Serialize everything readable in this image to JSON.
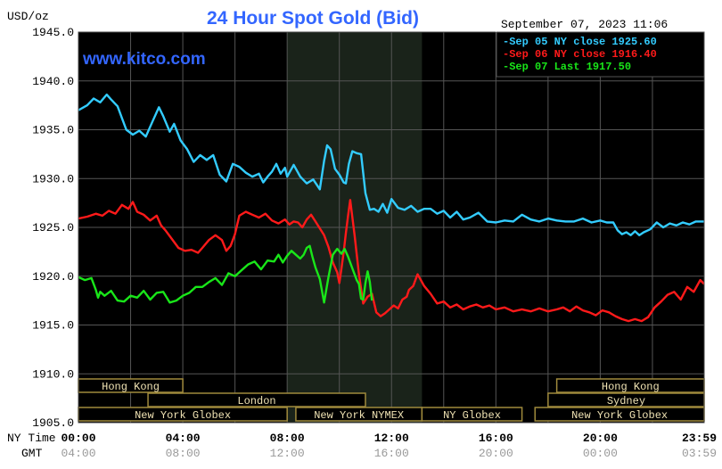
{
  "header": {
    "title": "24 Hour Spot Gold (Bid)",
    "datetime": "September 07, 2023 11:06",
    "watermark": "www.kitco.com"
  },
  "chart_data": {
    "type": "line",
    "title": "24 Hour Spot Gold (Bid)",
    "ylabel": "USD/oz",
    "xlabel": "NY Time",
    "xlabel2": "GMT",
    "ylim": [
      1905,
      1945
    ],
    "yticks": [
      "1945.0",
      "1940.0",
      "1935.0",
      "1930.0",
      "1925.0",
      "1920.0",
      "1915.0",
      "1910.0",
      "1905.0"
    ],
    "ytick_values": [
      1945,
      1940,
      1935,
      1930,
      1925,
      1920,
      1915,
      1910,
      1905
    ],
    "xlim": [
      0,
      1439
    ],
    "xticks_ny": [
      "00:00",
      "04:00",
      "08:00",
      "12:00",
      "16:00",
      "20:00",
      "23:59"
    ],
    "xticks_gmt": [
      "04:00",
      "08:00",
      "12:00",
      "16:00",
      "20:00",
      "00:00",
      "03:59"
    ],
    "xtick_minutes": [
      0,
      240,
      480,
      720,
      960,
      1200,
      1439
    ],
    "grid": true,
    "legend_position": "top-right",
    "colors": {
      "background": "#000000",
      "grid": "#555555",
      "highlight": "#1a231a",
      "title": "#3366ff",
      "watermark": "#3366ff",
      "axis_text": "#000000",
      "session_fill": "#efe2b3",
      "session_border": "#a08a3c"
    },
    "series": [
      {
        "name": "Sep 05 NY close 1925.60",
        "color": "#33ccff",
        "x": [
          0,
          20,
          35,
          50,
          65,
          75,
          90,
          100,
          110,
          125,
          140,
          155,
          170,
          185,
          195,
          210,
          220,
          235,
          250,
          265,
          280,
          295,
          310,
          325,
          340,
          355,
          370,
          385,
          400,
          415,
          425,
          435,
          445,
          455,
          465,
          475,
          480,
          495,
          510,
          525,
          540,
          555,
          565,
          572,
          580,
          590,
          600,
          610,
          615,
          622,
          630,
          640,
          650,
          660,
          670,
          680,
          690,
          700,
          710,
          720,
          735,
          750,
          765,
          780,
          795,
          810,
          825,
          840,
          855,
          870,
          885,
          900,
          920,
          940,
          960,
          980,
          1000,
          1020,
          1040,
          1060,
          1080,
          1100,
          1120,
          1140,
          1160,
          1180,
          1200,
          1215,
          1230,
          1240,
          1250,
          1260,
          1270,
          1280,
          1290,
          1300,
          1315,
          1330,
          1345,
          1360,
          1375,
          1390,
          1405,
          1420,
          1439
        ],
        "y": [
          1937.0,
          1937.5,
          1938.2,
          1937.8,
          1938.6,
          1938.1,
          1937.4,
          1936.2,
          1935.0,
          1934.5,
          1934.9,
          1934.3,
          1935.8,
          1937.3,
          1936.4,
          1934.8,
          1935.6,
          1933.9,
          1933.0,
          1931.7,
          1932.4,
          1931.9,
          1932.4,
          1930.4,
          1929.7,
          1931.5,
          1931.2,
          1930.6,
          1930.2,
          1930.5,
          1929.6,
          1930.2,
          1930.7,
          1931.5,
          1930.5,
          1931.1,
          1930.2,
          1931.4,
          1930.2,
          1929.5,
          1929.9,
          1928.9,
          1931.8,
          1933.4,
          1933.0,
          1931.0,
          1930.4,
          1929.6,
          1929.5,
          1931.5,
          1932.8,
          1932.6,
          1932.5,
          1928.5,
          1926.8,
          1926.9,
          1926.6,
          1927.4,
          1926.5,
          1927.9,
          1927.0,
          1926.8,
          1927.2,
          1926.6,
          1926.9,
          1926.9,
          1926.4,
          1926.7,
          1926.0,
          1926.6,
          1925.8,
          1926.0,
          1926.5,
          1925.6,
          1925.5,
          1925.7,
          1925.6,
          1926.3,
          1925.8,
          1925.6,
          1925.9,
          1925.7,
          1925.6,
          1925.6,
          1925.9,
          1925.5,
          1925.7,
          1925.5,
          1925.5,
          1924.7,
          1924.3,
          1924.5,
          1924.2,
          1924.6,
          1924.2,
          1924.5,
          1924.8,
          1925.5,
          1925.0,
          1925.4,
          1925.2,
          1925.5,
          1925.3,
          1925.6,
          1925.6
        ]
      },
      {
        "name": "Sep 06 NY close 1916.40",
        "color": "#ff1a1a",
        "x": [
          0,
          20,
          40,
          55,
          70,
          85,
          100,
          115,
          125,
          135,
          150,
          165,
          180,
          190,
          200,
          215,
          230,
          245,
          260,
          275,
          285,
          300,
          315,
          330,
          340,
          350,
          360,
          370,
          385,
          400,
          415,
          430,
          445,
          460,
          475,
          485,
          495,
          505,
          515,
          525,
          535,
          545,
          555,
          565,
          575,
          585,
          595,
          600,
          605,
          610,
          615,
          620,
          625,
          635,
          645,
          655,
          665,
          675,
          685,
          695,
          705,
          715,
          725,
          735,
          745,
          755,
          760,
          770,
          780,
          795,
          810,
          825,
          840,
          855,
          870,
          885,
          900,
          915,
          930,
          945,
          960,
          980,
          1000,
          1020,
          1040,
          1060,
          1080,
          1100,
          1115,
          1130,
          1145,
          1160,
          1175,
          1190,
          1205,
          1220,
          1235,
          1250,
          1265,
          1280,
          1295,
          1310,
          1325,
          1340,
          1355,
          1370,
          1385,
          1400,
          1415,
          1430,
          1439
        ],
        "y": [
          1925.9,
          1926.1,
          1926.4,
          1926.2,
          1926.7,
          1926.4,
          1927.3,
          1926.9,
          1927.6,
          1926.6,
          1926.3,
          1925.7,
          1926.2,
          1925.2,
          1924.7,
          1923.8,
          1922.9,
          1922.6,
          1922.7,
          1922.4,
          1922.9,
          1923.7,
          1924.2,
          1923.7,
          1922.6,
          1923.1,
          1924.3,
          1926.2,
          1926.6,
          1926.3,
          1926.0,
          1926.4,
          1925.7,
          1925.4,
          1925.8,
          1925.3,
          1925.6,
          1925.5,
          1925.0,
          1925.8,
          1926.3,
          1925.6,
          1924.9,
          1924.2,
          1923.0,
          1921.4,
          1920.4,
          1919.3,
          1920.8,
          1922.5,
          1924.4,
          1926.2,
          1927.8,
          1924.2,
          1920.2,
          1917.2,
          1917.9,
          1918.2,
          1916.3,
          1915.9,
          1916.2,
          1916.6,
          1917.0,
          1916.7,
          1917.6,
          1917.9,
          1918.6,
          1919.0,
          1920.2,
          1919.0,
          1918.2,
          1917.2,
          1917.4,
          1916.8,
          1917.1,
          1916.6,
          1916.9,
          1917.1,
          1916.8,
          1917.0,
          1916.6,
          1916.8,
          1916.4,
          1916.6,
          1916.4,
          1916.7,
          1916.4,
          1916.6,
          1916.8,
          1916.4,
          1916.9,
          1916.5,
          1916.3,
          1916.0,
          1916.5,
          1916.3,
          1915.9,
          1915.6,
          1915.4,
          1915.6,
          1915.4,
          1915.8,
          1916.8,
          1917.4,
          1918.1,
          1918.4,
          1917.6,
          1918.9,
          1918.4,
          1919.6,
          1919.2
        ]
      },
      {
        "name": "Sep 07 Last 1917.50",
        "color": "#19e619",
        "x": [
          0,
          15,
          30,
          40,
          45,
          50,
          60,
          75,
          90,
          105,
          120,
          135,
          150,
          165,
          180,
          195,
          210,
          225,
          240,
          255,
          270,
          285,
          300,
          315,
          330,
          345,
          360,
          375,
          390,
          405,
          420,
          435,
          450,
          460,
          470,
          480,
          490,
          500,
          510,
          518,
          525,
          532,
          538,
          545,
          555,
          565,
          575,
          585,
          595,
          605,
          612,
          620,
          630,
          640,
          645,
          650,
          655,
          660,
          665,
          670,
          675
        ],
        "y": [
          1919.9,
          1919.6,
          1919.8,
          1918.6,
          1917.8,
          1918.4,
          1918.0,
          1918.5,
          1917.5,
          1917.4,
          1918.0,
          1917.8,
          1918.5,
          1917.6,
          1918.3,
          1918.4,
          1917.3,
          1917.5,
          1918.0,
          1918.3,
          1918.9,
          1918.9,
          1919.4,
          1919.8,
          1919.1,
          1920.3,
          1920.0,
          1920.6,
          1921.2,
          1921.5,
          1920.7,
          1921.6,
          1921.5,
          1922.2,
          1921.4,
          1922.1,
          1922.6,
          1922.2,
          1921.8,
          1922.2,
          1922.9,
          1923.1,
          1922.0,
          1920.9,
          1919.7,
          1917.3,
          1919.9,
          1922.2,
          1922.8,
          1922.3,
          1922.8,
          1922.0,
          1920.8,
          1919.6,
          1919.2,
          1917.7,
          1917.6,
          1919.3,
          1920.5,
          1919.4,
          1917.5
        ]
      }
    ],
    "sessions": [
      {
        "label": "Hong Kong",
        "start": -360,
        "end": 240,
        "row": 0
      },
      {
        "label": "London",
        "start": 160,
        "end": 660,
        "row": 1
      },
      {
        "label": "New York Globex",
        "start": -60,
        "end": 480,
        "row": 2
      },
      {
        "label": "New York NYMEX",
        "start": 500,
        "end": 790,
        "row": 2
      },
      {
        "label": "NY Globex",
        "start": 790,
        "end": 1020,
        "row": 2
      },
      {
        "label": "Hong Kong",
        "start": 1100,
        "end": 1700,
        "row": 0
      },
      {
        "label": "Sydney",
        "start": 1080,
        "end": 1580,
        "row": 1
      },
      {
        "label": "New York Globex",
        "start": 1050,
        "end": 1600,
        "row": 2
      }
    ],
    "highlight_range": [
      480,
      790
    ]
  }
}
